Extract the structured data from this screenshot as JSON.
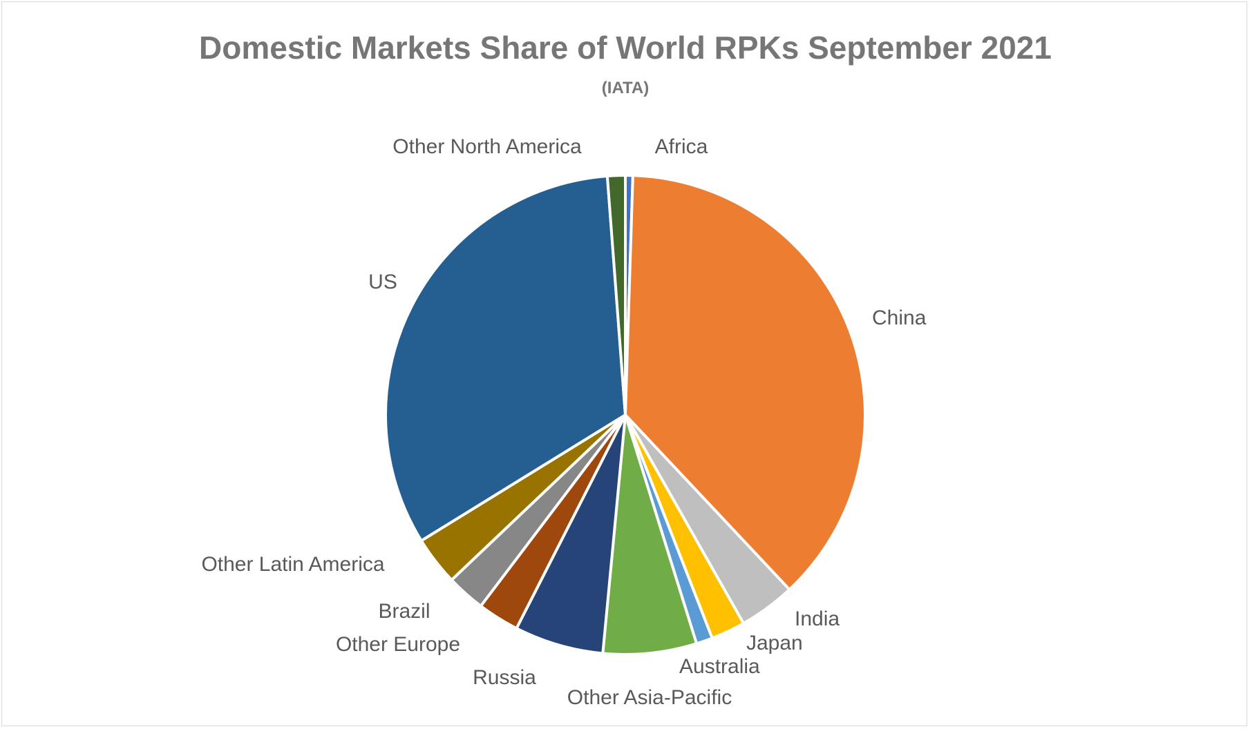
{
  "chart_data": {
    "type": "pie",
    "title": "Domestic Markets Share of World RPKs September 2021",
    "subtitle": "(IATA)",
    "legend": "none",
    "slices": [
      {
        "label": "Africa",
        "value": 0.5,
        "color": "#4472C4"
      },
      {
        "label": "China",
        "value": 37.5,
        "color": "#ED7D31"
      },
      {
        "label": "India",
        "value": 3.8,
        "color": "#BFBFBF"
      },
      {
        "label": "Japan",
        "value": 2.3,
        "color": "#FFC000"
      },
      {
        "label": "Australia",
        "value": 1.1,
        "color": "#5B9BD5"
      },
      {
        "label": "Other Asia-Pacific",
        "value": 6.3,
        "color": "#70AD47"
      },
      {
        "label": "Russia",
        "value": 6.0,
        "color": "#264478"
      },
      {
        "label": "Other Europe",
        "value": 2.8,
        "color": "#9E480E"
      },
      {
        "label": "Brazil",
        "value": 2.6,
        "color": "#878787"
      },
      {
        "label": "Other Latin America",
        "value": 3.3,
        "color": "#997300"
      },
      {
        "label": "US",
        "value": 32.6,
        "color": "#255E91"
      },
      {
        "label": "Other North America",
        "value": 1.2,
        "color": "#43682B"
      }
    ]
  }
}
